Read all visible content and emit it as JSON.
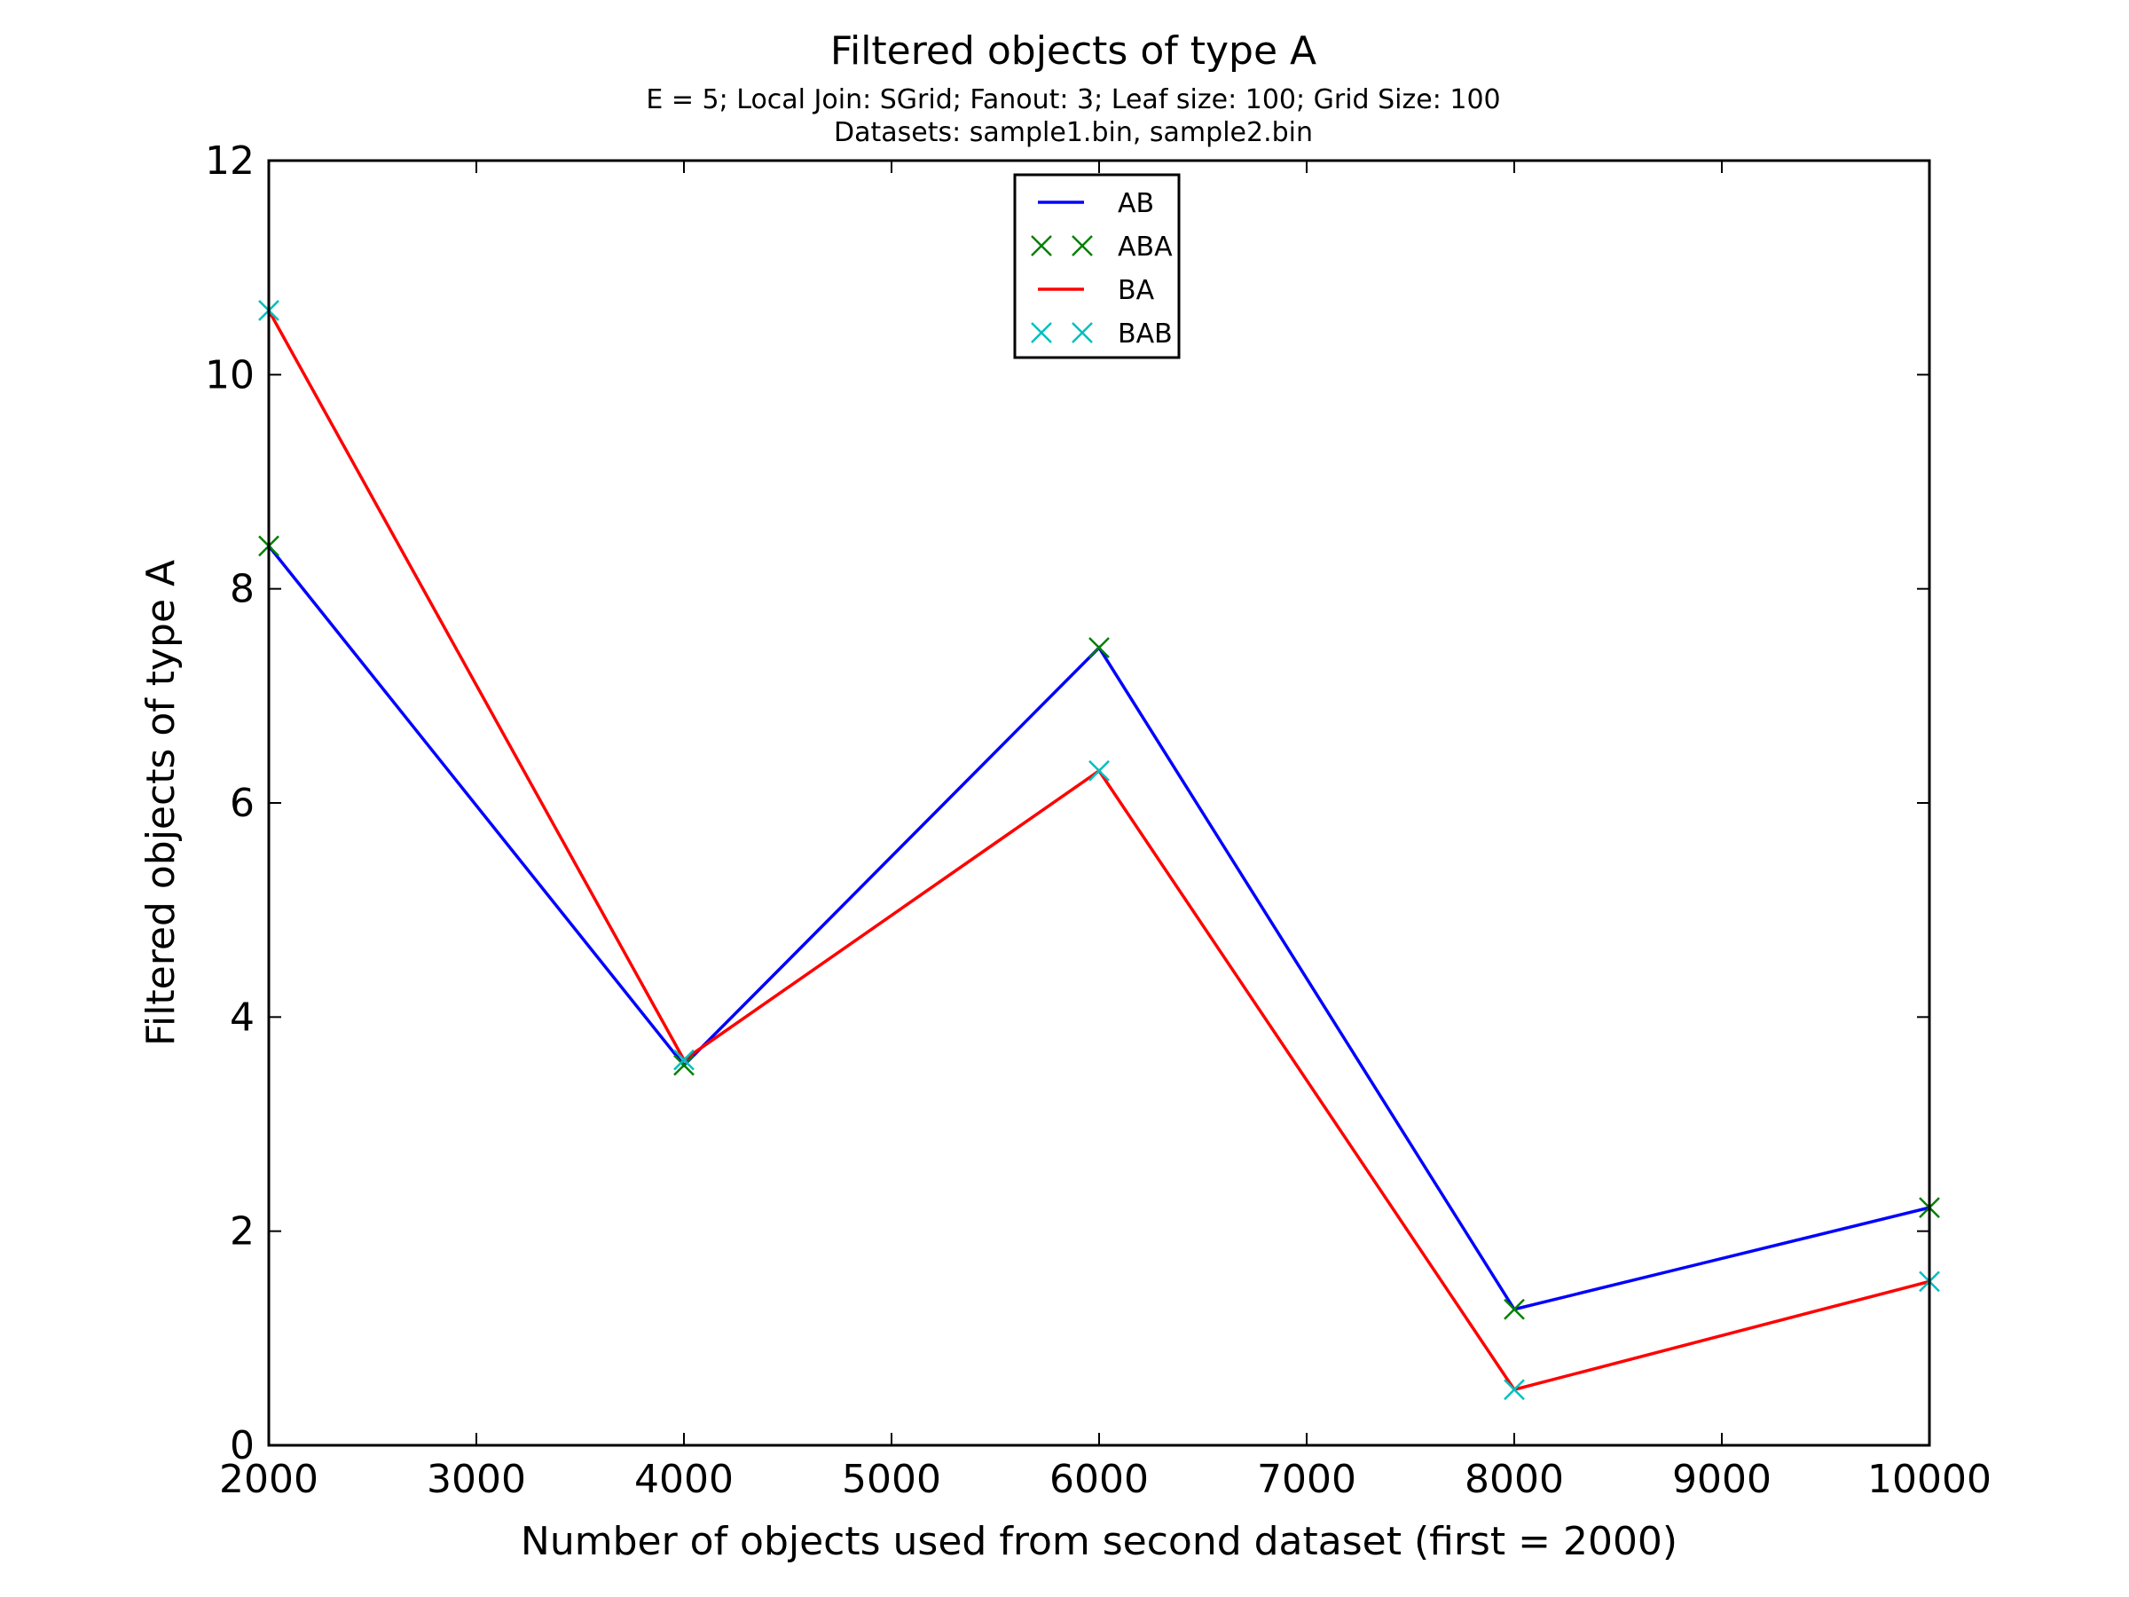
{
  "chart_data": {
    "type": "line",
    "title": "Filtered objects of type A",
    "subtitle_lines": [
      "E = 5; Local Join: SGrid; Fanout: 3; Leaf size: 100; Grid Size: 100",
      "Datasets: sample1.bin, sample2.bin"
    ],
    "xlabel": "Number of objects used from second dataset (first = 2000)",
    "ylabel": "Filtered objects of type A",
    "xlim": [
      2000,
      10000
    ],
    "ylim": [
      0,
      12
    ],
    "xticks": [
      2000,
      3000,
      4000,
      5000,
      6000,
      7000,
      8000,
      9000,
      10000
    ],
    "yticks": [
      0,
      2,
      4,
      6,
      8,
      10,
      12
    ],
    "x": [
      2000,
      4000,
      6000,
      8000,
      10000
    ],
    "legend_position": "top-center",
    "grid": false,
    "series": [
      {
        "name": "AB",
        "style": "line",
        "color": "#0000ff",
        "values": [
          8.4,
          3.55,
          7.45,
          1.27,
          2.22
        ]
      },
      {
        "name": "ABA",
        "style": "marker-x",
        "color": "#008000",
        "values": [
          8.4,
          3.55,
          7.45,
          1.27,
          2.22
        ]
      },
      {
        "name": "BA",
        "style": "line",
        "color": "#ff0000",
        "values": [
          10.6,
          3.6,
          6.3,
          0.52,
          1.53
        ]
      },
      {
        "name": "BAB",
        "style": "marker-x",
        "color": "#00bfbf",
        "values": [
          10.6,
          3.6,
          6.3,
          0.52,
          1.53
        ]
      }
    ]
  }
}
